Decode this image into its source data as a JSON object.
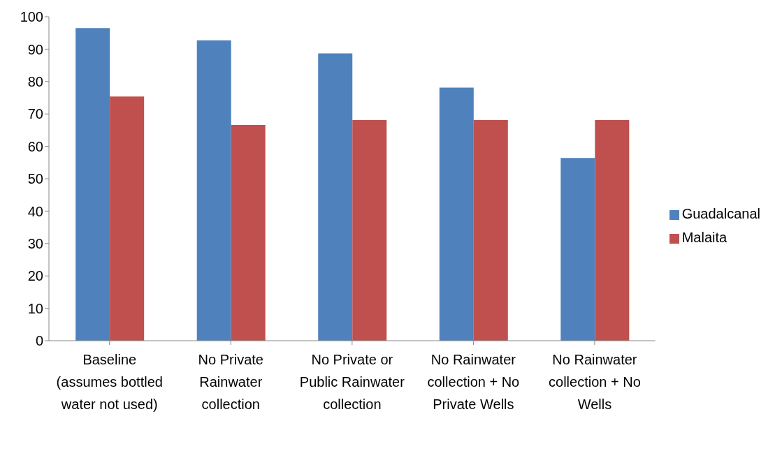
{
  "chart_data": {
    "type": "bar",
    "categories": [
      "Baseline (assumes bottled water not used)",
      "No Private Rainwater collection",
      "No Private or Public Rainwater collection",
      "No Rainwater collection + No Private Wells",
      "No Rainwater collection + No Wells"
    ],
    "series": [
      {
        "name": "Guadalcanal",
        "color": "#4f81bd",
        "values": [
          96.5,
          92.7,
          88.7,
          78.1,
          56.4
        ]
      },
      {
        "name": "Malaita",
        "color": "#c0504d",
        "values": [
          75.4,
          66.6,
          68.1,
          68.1,
          68.1
        ]
      }
    ],
    "ylim": [
      0,
      100
    ],
    "yticks": [
      0,
      10,
      20,
      30,
      40,
      50,
      60,
      70,
      80,
      90,
      100
    ],
    "grid": false,
    "legend": "right"
  }
}
